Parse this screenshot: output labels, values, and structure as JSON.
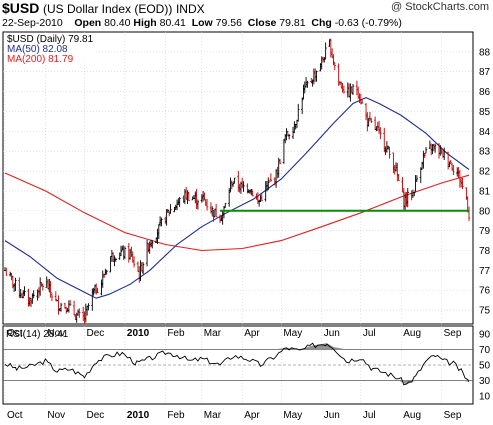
{
  "header": {
    "symbol": "$USD",
    "name": "(US Dollar Index (EOD))",
    "exchange": "INDX",
    "watermark": "@ StockCharts.com",
    "date": "22-Sep-2010",
    "open_label": "Open",
    "open": "80.40",
    "high_label": "High",
    "high": "80.41",
    "low_label": "Low",
    "low": "79.56",
    "close_label": "Close",
    "close": "79.81",
    "chg_label": "Chg",
    "chg": "-0.63 (-0.79%)"
  },
  "legend": {
    "price": "$USD (Daily) 79.81",
    "ma50": "MA(50) 82.08",
    "ma200": "MA(200) 81.79",
    "rsi": "RSI(14) 28.41"
  },
  "colors": {
    "price_bar": "#000000",
    "ma50": "#1f2f8f",
    "ma200": "#e02020",
    "support_line": "#0a8a0a",
    "rsi_line": "#000000",
    "rsi_extreme_fill": "#777777",
    "grid": "#cfcfcf"
  },
  "chart_data": [
    {
      "type": "line",
      "title": "$USD (Daily) 79.81",
      "ylim": [
        74.3,
        89
      ],
      "y_ticks": [
        75,
        76,
        77,
        78,
        79,
        80,
        81,
        82,
        83,
        84,
        85,
        86,
        87,
        88
      ],
      "x_ticks": [
        "Oct",
        "Nov",
        "Dec",
        "2010",
        "Feb",
        "Mar",
        "Apr",
        "May",
        "Jun",
        "Jul",
        "Aug",
        "Sep"
      ],
      "x_range": [
        "2009-10-01",
        "2010-09-22"
      ],
      "horizontal_line": {
        "value": 80.0,
        "from": "2010-03-15",
        "to": "2010-09-22"
      },
      "series": [
        {
          "name": "$USD (Daily)",
          "style": "ohlc-bars",
          "points": [
            [
              "2009-10-01",
              77.0
            ],
            [
              "2009-10-06",
              76.5
            ],
            [
              "2009-10-14",
              75.8
            ],
            [
              "2009-10-20",
              75.5
            ],
            [
              "2009-10-26",
              76.0
            ],
            [
              "2009-11-01",
              76.4
            ],
            [
              "2009-11-10",
              75.3
            ],
            [
              "2009-11-18",
              75.2
            ],
            [
              "2009-11-25",
              74.7
            ],
            [
              "2009-12-01",
              74.6
            ],
            [
              "2009-12-07",
              75.8
            ],
            [
              "2009-12-14",
              76.4
            ],
            [
              "2009-12-21",
              77.7
            ],
            [
              "2009-12-28",
              77.9
            ],
            [
              "2010-01-05",
              77.8
            ],
            [
              "2010-01-12",
              76.8
            ],
            [
              "2010-01-19",
              78.3
            ],
            [
              "2010-01-26",
              79.0
            ],
            [
              "2010-02-03",
              79.9
            ],
            [
              "2010-02-09",
              80.3
            ],
            [
              "2010-02-17",
              80.8
            ],
            [
              "2010-02-24",
              80.6
            ],
            [
              "2010-03-02",
              80.6
            ],
            [
              "2010-03-10",
              79.9
            ],
            [
              "2010-03-17",
              79.8
            ],
            [
              "2010-03-24",
              81.5
            ],
            [
              "2010-03-31",
              81.2
            ],
            [
              "2010-04-07",
              81.2
            ],
            [
              "2010-04-13",
              80.4
            ],
            [
              "2010-04-21",
              81.3
            ],
            [
              "2010-04-27",
              81.8
            ],
            [
              "2010-05-04",
              83.7
            ],
            [
              "2010-05-11",
              84.3
            ],
            [
              "2010-05-18",
              86.0
            ],
            [
              "2010-05-24",
              86.6
            ],
            [
              "2010-06-01",
              87.5
            ],
            [
              "2010-06-07",
              88.4
            ],
            [
              "2010-06-14",
              86.5
            ],
            [
              "2010-06-21",
              85.9
            ],
            [
              "2010-06-28",
              86.2
            ],
            [
              "2010-07-06",
              84.5
            ],
            [
              "2010-07-13",
              84.1
            ],
            [
              "2010-07-20",
              83.3
            ],
            [
              "2010-07-27",
              82.2
            ],
            [
              "2010-08-03",
              80.5
            ],
            [
              "2010-08-10",
              80.9
            ],
            [
              "2010-08-17",
              82.6
            ],
            [
              "2010-08-24",
              83.2
            ],
            [
              "2010-08-31",
              83.0
            ],
            [
              "2010-09-07",
              82.5
            ],
            [
              "2010-09-14",
              81.8
            ],
            [
              "2010-09-20",
              80.6
            ],
            [
              "2010-09-22",
              79.8
            ]
          ]
        },
        {
          "name": "MA(50)",
          "points": [
            [
              "2009-10-01",
              78.5
            ],
            [
              "2009-10-20",
              77.7
            ],
            [
              "2009-11-10",
              76.6
            ],
            [
              "2009-12-01",
              75.9
            ],
            [
              "2009-12-10",
              75.6
            ],
            [
              "2009-12-20",
              75.8
            ],
            [
              "2010-01-05",
              76.3
            ],
            [
              "2010-01-20",
              77.0
            ],
            [
              "2010-02-10",
              78.3
            ],
            [
              "2010-03-01",
              79.2
            ],
            [
              "2010-03-20",
              79.9
            ],
            [
              "2010-04-10",
              80.6
            ],
            [
              "2010-05-01",
              81.6
            ],
            [
              "2010-05-20",
              82.9
            ],
            [
              "2010-06-10",
              84.4
            ],
            [
              "2010-06-25",
              85.4
            ],
            [
              "2010-07-05",
              85.7
            ],
            [
              "2010-07-15",
              85.4
            ],
            [
              "2010-08-01",
              84.8
            ],
            [
              "2010-08-20",
              83.9
            ],
            [
              "2010-09-05",
              82.9
            ],
            [
              "2010-09-22",
              82.08
            ]
          ]
        },
        {
          "name": "MA(200)",
          "points": [
            [
              "2009-10-01",
              81.9
            ],
            [
              "2009-11-01",
              81.0
            ],
            [
              "2009-12-01",
              79.9
            ],
            [
              "2010-01-01",
              78.9
            ],
            [
              "2010-02-01",
              78.3
            ],
            [
              "2010-03-01",
              78.0
            ],
            [
              "2010-04-01",
              78.1
            ],
            [
              "2010-05-01",
              78.5
            ],
            [
              "2010-06-01",
              79.2
            ],
            [
              "2010-07-01",
              79.9
            ],
            [
              "2010-08-01",
              80.7
            ],
            [
              "2010-09-01",
              81.4
            ],
            [
              "2010-09-22",
              81.79
            ]
          ]
        }
      ]
    },
    {
      "type": "line",
      "title": "RSI(14) 28.41",
      "ylim": [
        0,
        100
      ],
      "y_ticks": [
        10,
        30,
        50,
        70,
        90
      ],
      "x_ticks": [
        "Oct",
        "Nov",
        "Dec",
        "2010",
        "Feb",
        "Mar",
        "Apr",
        "May",
        "Jun",
        "Jul",
        "Aug",
        "Sep"
      ],
      "reference_lines": [
        30,
        50,
        70
      ],
      "series": [
        {
          "name": "RSI(14)",
          "points": [
            [
              "2009-10-01",
              52
            ],
            [
              "2009-10-10",
              45
            ],
            [
              "2009-10-20",
              48
            ],
            [
              "2009-11-01",
              55
            ],
            [
              "2009-11-10",
              42
            ],
            [
              "2009-11-20",
              45
            ],
            [
              "2009-12-01",
              35
            ],
            [
              "2009-12-10",
              55
            ],
            [
              "2009-12-20",
              62
            ],
            [
              "2009-12-30",
              65
            ],
            [
              "2010-01-10",
              52
            ],
            [
              "2010-01-20",
              58
            ],
            [
              "2010-02-01",
              66
            ],
            [
              "2010-02-10",
              63
            ],
            [
              "2010-02-20",
              55
            ],
            [
              "2010-03-01",
              58
            ],
            [
              "2010-03-15",
              50
            ],
            [
              "2010-03-25",
              62
            ],
            [
              "2010-04-05",
              58
            ],
            [
              "2010-04-15",
              50
            ],
            [
              "2010-04-25",
              60
            ],
            [
              "2010-05-05",
              72
            ],
            [
              "2010-05-15",
              68
            ],
            [
              "2010-05-25",
              75
            ],
            [
              "2010-06-05",
              78
            ],
            [
              "2010-06-10",
              73
            ],
            [
              "2010-06-20",
              55
            ],
            [
              "2010-07-01",
              60
            ],
            [
              "2010-07-10",
              45
            ],
            [
              "2010-07-20",
              40
            ],
            [
              "2010-07-30",
              33
            ],
            [
              "2010-08-05",
              25
            ],
            [
              "2010-08-12",
              35
            ],
            [
              "2010-08-20",
              55
            ],
            [
              "2010-08-27",
              62
            ],
            [
              "2010-09-03",
              55
            ],
            [
              "2010-09-10",
              52
            ],
            [
              "2010-09-17",
              40
            ],
            [
              "2010-09-22",
              28.41
            ]
          ]
        }
      ]
    }
  ]
}
